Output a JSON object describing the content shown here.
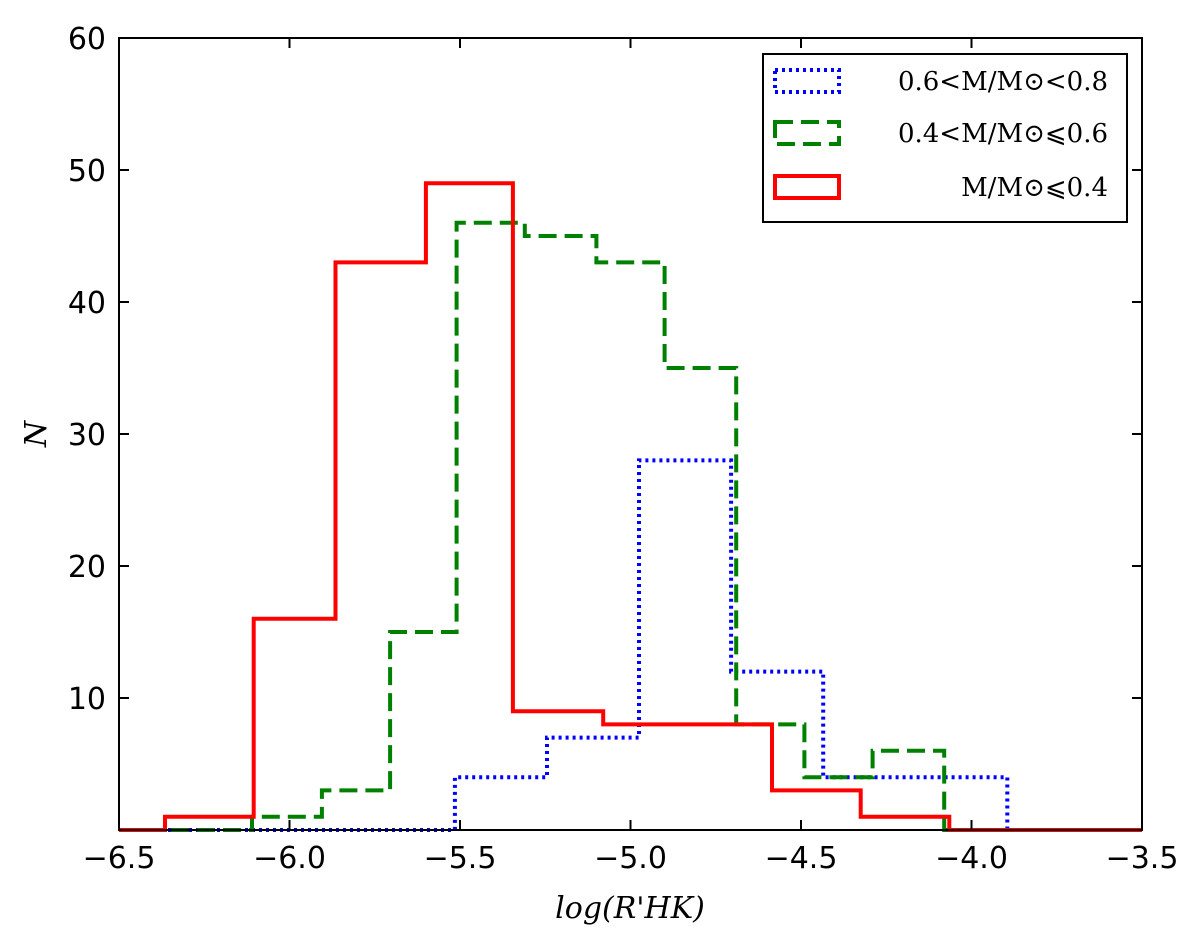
{
  "chart_data": {
    "type": "histogram-step",
    "xlabel": "log(R'HK)",
    "ylabel": "N",
    "xlim": [
      -6.5,
      -3.5
    ],
    "ylim": [
      0,
      60
    ],
    "xticks": [
      -6.5,
      -6.0,
      -5.5,
      -5.0,
      -4.5,
      -4.0,
      -3.5
    ],
    "xtick_labels": [
      "−6.5",
      "−6.0",
      "−5.5",
      "−5.0",
      "−4.5",
      "−4.0",
      "−3.5"
    ],
    "yticks": [
      10,
      20,
      30,
      40,
      50,
      60
    ],
    "ytick_labels": [
      "10",
      "20",
      "30",
      "40",
      "50",
      "60"
    ],
    "grid": false,
    "legend_position": "top-right",
    "series": [
      {
        "name": "0.6 < M/M⊙ < 0.8",
        "legend_label": "0.6<M/M⊙<0.8",
        "color": "#0000ff",
        "style": "dotted",
        "edges": [
          -6.5,
          -5.515,
          -5.245,
          -4.975,
          -4.705,
          -4.435,
          -3.895,
          -3.5
        ],
        "values": [
          0,
          4,
          7,
          28,
          12,
          4,
          0
        ]
      },
      {
        "name": "0.4 < M/M⊙ ≤ 0.6",
        "legend_label": "0.4<M/M⊙⩽0.6",
        "color": "#008000",
        "style": "dashed",
        "edges": [
          -6.5,
          -6.11,
          -5.905,
          -5.705,
          -5.51,
          -5.31,
          -5.1,
          -4.9,
          -4.69,
          -4.49,
          -4.29,
          -4.08,
          -3.5
        ],
        "values": [
          0,
          1,
          3,
          15,
          46,
          45,
          43,
          35,
          8,
          4,
          6,
          0
        ]
      },
      {
        "name": "M/M⊙ ≤ 0.4",
        "legend_label": "M/M⊙⩽0.4",
        "color": "#ff0000",
        "style": "solid",
        "edges": [
          -6.5,
          -6.365,
          -6.105,
          -5.865,
          -5.6,
          -5.345,
          -5.08,
          -4.585,
          -4.325,
          -4.065,
          -3.5
        ],
        "values": [
          0,
          1,
          16,
          43,
          49,
          9,
          8,
          3,
          1,
          0
        ]
      }
    ]
  }
}
